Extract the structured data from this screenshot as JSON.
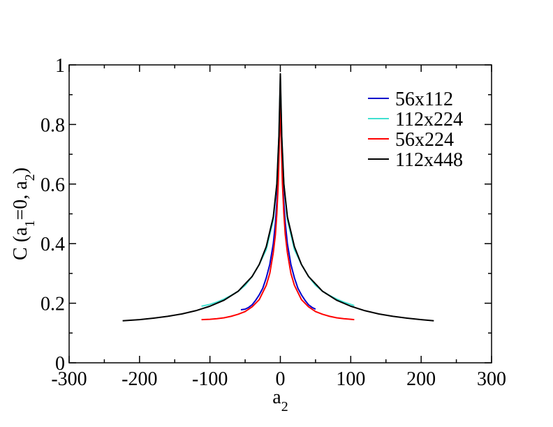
{
  "chart_data": {
    "type": "line",
    "xlabel": "a2",
    "ylabel": "C (a1=0, a2)",
    "xlim": [
      -300,
      300
    ],
    "ylim": [
      0,
      1
    ],
    "xticks": [
      -300,
      -200,
      -100,
      0,
      100,
      200,
      300
    ],
    "yticks": [
      0,
      0.2,
      0.4,
      0.6,
      0.8,
      1
    ],
    "xtick_labels": [
      "-300",
      "-200",
      "-100",
      "0",
      "100",
      "200",
      "300"
    ],
    "ytick_labels": [
      "0",
      "0.2",
      "0.4",
      "0.6",
      "0.8",
      "1"
    ],
    "grid": false,
    "legend_position": "top-right",
    "series": [
      {
        "name": "56x112",
        "color": "#0000cc",
        "x": [
          -56,
          -50,
          -45,
          -40,
          -35,
          -30,
          -25,
          -20,
          -15,
          -10,
          -7,
          -5,
          -3,
          -2,
          -1,
          0,
          1,
          2,
          3,
          5,
          7,
          10,
          15,
          20,
          25,
          30,
          35,
          40,
          45,
          50
        ],
        "y": [
          0.178,
          0.18,
          0.186,
          0.195,
          0.21,
          0.228,
          0.25,
          0.285,
          0.33,
          0.4,
          0.47,
          0.54,
          0.64,
          0.71,
          0.8,
          0.88,
          0.8,
          0.71,
          0.64,
          0.54,
          0.47,
          0.4,
          0.33,
          0.285,
          0.25,
          0.228,
          0.21,
          0.195,
          0.186,
          0.18
        ]
      },
      {
        "name": "112x224",
        "color": "#40e0d0",
        "x": [
          -112,
          -100,
          -90,
          -80,
          -70,
          -60,
          -50,
          -40,
          -30,
          -20,
          -10,
          -5,
          -2,
          0,
          2,
          5,
          10,
          20,
          30,
          40,
          50,
          60,
          70,
          80,
          90,
          100,
          105
        ],
        "y": [
          0.19,
          0.196,
          0.204,
          0.214,
          0.226,
          0.24,
          0.26,
          0.29,
          0.33,
          0.38,
          0.48,
          0.6,
          0.76,
          0.95,
          0.76,
          0.6,
          0.48,
          0.38,
          0.33,
          0.29,
          0.26,
          0.24,
          0.226,
          0.214,
          0.204,
          0.196,
          0.192
        ]
      },
      {
        "name": "56x224",
        "color": "#ff0000",
        "x": [
          -112,
          -100,
          -90,
          -80,
          -70,
          -60,
          -50,
          -40,
          -30,
          -20,
          -15,
          -10,
          -7,
          -5,
          -3,
          -2,
          -1,
          0,
          1,
          2,
          3,
          5,
          7,
          10,
          15,
          20,
          30,
          40,
          50,
          60,
          70,
          80,
          90,
          100,
          105
        ],
        "y": [
          0.145,
          0.146,
          0.148,
          0.151,
          0.156,
          0.163,
          0.172,
          0.188,
          0.212,
          0.26,
          0.3,
          0.37,
          0.43,
          0.5,
          0.6,
          0.68,
          0.78,
          0.88,
          0.78,
          0.68,
          0.6,
          0.5,
          0.43,
          0.37,
          0.3,
          0.26,
          0.212,
          0.188,
          0.172,
          0.163,
          0.156,
          0.151,
          0.148,
          0.146,
          0.145
        ]
      },
      {
        "name": "112x448",
        "color": "#000000",
        "x": [
          -224,
          -200,
          -180,
          -160,
          -140,
          -120,
          -100,
          -80,
          -60,
          -40,
          -30,
          -20,
          -10,
          -5,
          -2,
          0,
          2,
          5,
          10,
          20,
          30,
          40,
          60,
          80,
          100,
          120,
          140,
          160,
          180,
          200,
          218
        ],
        "y": [
          0.141,
          0.145,
          0.15,
          0.156,
          0.164,
          0.175,
          0.19,
          0.21,
          0.24,
          0.29,
          0.33,
          0.39,
          0.49,
          0.6,
          0.76,
          0.97,
          0.76,
          0.6,
          0.49,
          0.39,
          0.33,
          0.29,
          0.24,
          0.21,
          0.19,
          0.175,
          0.164,
          0.156,
          0.15,
          0.145,
          0.141
        ]
      }
    ]
  }
}
